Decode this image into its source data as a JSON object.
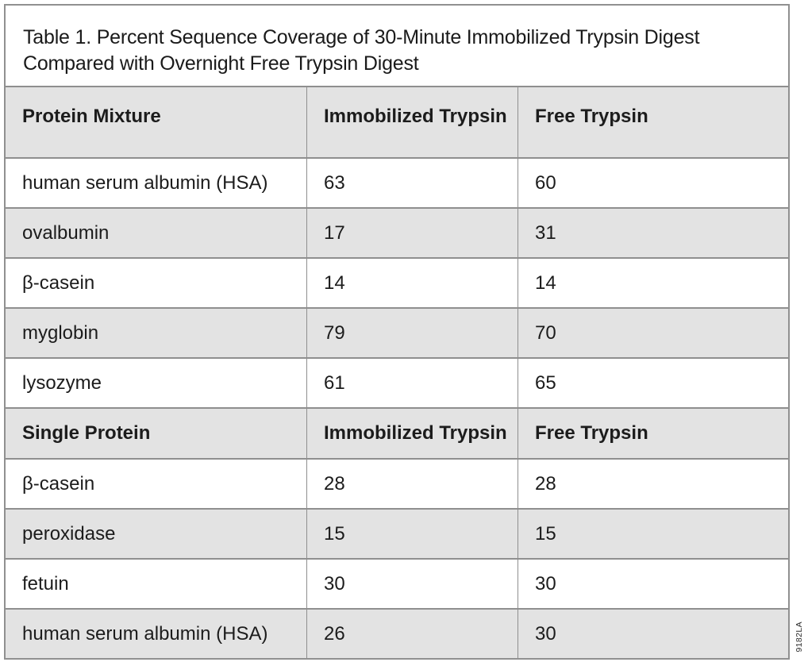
{
  "document": {
    "title": "Table 1. Percent Sequence Coverage of 30-Minute Immobilized Trypsin Digest Compared with Overnight Free Trypsin Digest",
    "figure_code": "9182LA"
  },
  "colors": {
    "header_row_bg": "#e3e3e3",
    "alt_row_bg": "#e3e3e3",
    "row_bg": "#ffffff",
    "grid_line": "#8f8f8f",
    "frame_border": "#909090",
    "text": "#1c1c1c"
  },
  "chart_data": {
    "type": "table",
    "title": "Table 1. Percent Sequence Coverage of 30-Minute Immobilized Trypsin Digest Compared with Overnight Free Trypsin Digest",
    "sections": [
      {
        "header": [
          "Protein Mixture",
          "Immobilized Trypsin",
          "Free Trypsin"
        ],
        "rows": [
          [
            "human serum albumin (HSA)",
            "63",
            "60"
          ],
          [
            "ovalbumin",
            "17",
            "31"
          ],
          [
            "β-casein",
            "14",
            "14"
          ],
          [
            "myglobin",
            "79",
            "70"
          ],
          [
            "lysozyme",
            "61",
            "65"
          ]
        ]
      },
      {
        "header": [
          "Single Protein",
          "Immobilized Trypsin",
          "Free Trypsin"
        ],
        "rows": [
          [
            "β-casein",
            "28",
            "28"
          ],
          [
            "peroxidase",
            "15",
            "15"
          ],
          [
            "fetuin",
            "30",
            "30"
          ],
          [
            "human serum albumin (HSA)",
            "26",
            "30"
          ]
        ]
      }
    ]
  }
}
